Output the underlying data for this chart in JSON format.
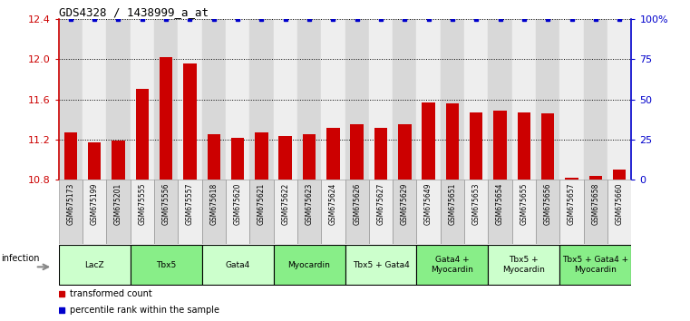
{
  "title": "GDS4328 / 1438999_a_at",
  "samples": [
    "GSM675173",
    "GSM675199",
    "GSM675201",
    "GSM675555",
    "GSM675556",
    "GSM675557",
    "GSM675618",
    "GSM675620",
    "GSM675621",
    "GSM675622",
    "GSM675623",
    "GSM675624",
    "GSM675626",
    "GSM675627",
    "GSM675629",
    "GSM675649",
    "GSM675651",
    "GSM675653",
    "GSM675654",
    "GSM675655",
    "GSM675656",
    "GSM675657",
    "GSM675658",
    "GSM675660"
  ],
  "bar_values": [
    11.27,
    11.17,
    11.19,
    11.71,
    12.02,
    11.96,
    11.25,
    11.22,
    11.27,
    11.24,
    11.25,
    11.32,
    11.35,
    11.32,
    11.35,
    11.57,
    11.56,
    11.47,
    11.49,
    11.47,
    11.46,
    10.82,
    10.84,
    10.9
  ],
  "percentile_values": [
    100,
    100,
    100,
    100,
    100,
    100,
    100,
    100,
    100,
    100,
    100,
    100,
    100,
    100,
    100,
    100,
    100,
    100,
    100,
    100,
    100,
    100,
    100,
    100
  ],
  "bar_color": "#cc0000",
  "dot_color": "#0000cc",
  "ylim": [
    10.8,
    12.4
  ],
  "y2lim": [
    0,
    100
  ],
  "yticks": [
    10.8,
    11.2,
    11.6,
    12.0,
    12.4
  ],
  "y2ticks": [
    0,
    25,
    50,
    75,
    100
  ],
  "y2tick_labels": [
    "0",
    "25",
    "50",
    "75",
    "100%"
  ],
  "groups": [
    {
      "label": "LacZ",
      "start": 0,
      "end": 3,
      "color": "#ccffcc"
    },
    {
      "label": "Tbx5",
      "start": 3,
      "end": 6,
      "color": "#88ee88"
    },
    {
      "label": "Gata4",
      "start": 6,
      "end": 9,
      "color": "#ccffcc"
    },
    {
      "label": "Myocardin",
      "start": 9,
      "end": 12,
      "color": "#88ee88"
    },
    {
      "label": "Tbx5 + Gata4",
      "start": 12,
      "end": 15,
      "color": "#ccffcc"
    },
    {
      "label": "Gata4 +\nMyocardin",
      "start": 15,
      "end": 18,
      "color": "#88ee88"
    },
    {
      "label": "Tbx5 +\nMyocardin",
      "start": 18,
      "end": 21,
      "color": "#ccffcc"
    },
    {
      "label": "Tbx5 + Gata4 +\nMyocardin",
      "start": 21,
      "end": 24,
      "color": "#88ee88"
    }
  ],
  "infection_label": "infection",
  "legend_bar_label": "transformed count",
  "legend_dot_label": "percentile rank within the sample",
  "bg_colors": [
    "#d8d8d8",
    "#eeeeee"
  ]
}
